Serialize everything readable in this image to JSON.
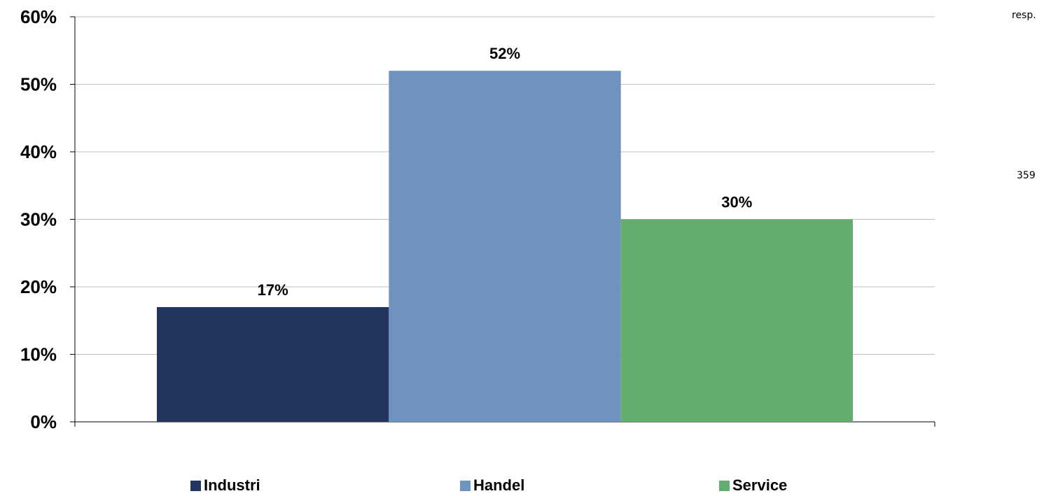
{
  "chart_data": {
    "type": "bar",
    "categories": [
      "Industri",
      "Handel",
      "Service"
    ],
    "values": [
      17,
      52,
      30
    ],
    "data_labels": [
      "17%",
      "52%",
      "30%"
    ],
    "colors": [
      "#22355F",
      "#6D93BE",
      "#65AD6E"
    ],
    "ylim": [
      0,
      60
    ],
    "y_ticks": [
      "0%",
      "10%",
      "20%",
      "30%",
      "40%",
      "50%",
      "60%"
    ],
    "grid": true,
    "legend_position": "bottom",
    "title": "",
    "xlabel": "",
    "ylabel": ""
  },
  "side_notes": {
    "resp_label": "resp.",
    "resp_count": "359"
  }
}
